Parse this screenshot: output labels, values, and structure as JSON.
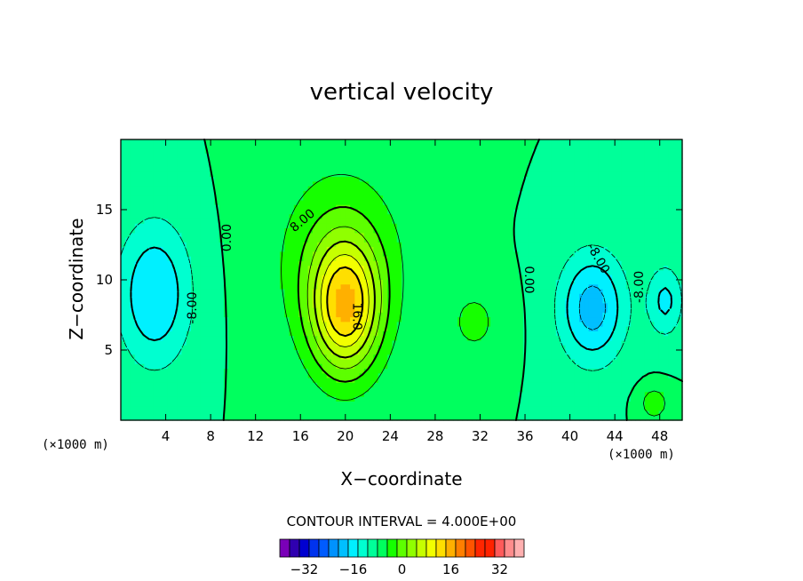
{
  "chart_data": {
    "type": "contour",
    "title": "vertical velocity",
    "xlabel": "X−coordinate",
    "ylabel": "Z−coordinate",
    "x_unit_label_left": "(×1000 m)",
    "x_unit_label_right": "(×1000 m)",
    "xlim": [
      0,
      50
    ],
    "ylim": [
      0,
      20
    ],
    "x_ticks": [
      4,
      8,
      12,
      16,
      20,
      24,
      28,
      32,
      36,
      40,
      44,
      48
    ],
    "y_ticks": [
      5,
      10,
      15
    ],
    "contour_interval_text": "CONTOUR INTERVAL = 4.000E+00",
    "contour_interval": 4,
    "contour_labels": [
      {
        "text": "0.00",
        "x": 9.5,
        "y": 13.0,
        "rotation": -90
      },
      {
        "text": "8.00",
        "x": 16.2,
        "y": 14.2,
        "rotation": -40
      },
      {
        "text": "16.0",
        "x": 21.0,
        "y": 7.4,
        "rotation": 90
      },
      {
        "text": "0.00",
        "x": 36.3,
        "y": 10.0,
        "rotation": 90
      },
      {
        "text": "-8.00",
        "x": 6.4,
        "y": 8.0,
        "rotation": -90
      },
      {
        "text": "-8.00",
        "x": 42.5,
        "y": 11.5,
        "rotation": 60
      },
      {
        "text": "-8.00",
        "x": 46.2,
        "y": 9.5,
        "rotation": -90
      }
    ],
    "field_features": [
      {
        "name": "updraft-core",
        "x": 20.0,
        "y": 8.0,
        "peak": 24
      },
      {
        "name": "downdraft-left",
        "x": 3.0,
        "y": 9.0,
        "peak": -12
      },
      {
        "name": "downdraft-right",
        "x": 42.0,
        "y": 8.0,
        "peak": -14
      }
    ],
    "colorbar": {
      "min": -40,
      "max": 40,
      "step": 4,
      "tick_values": [
        -32,
        -16,
        0,
        16,
        32
      ],
      "tick_labels": [
        "−32",
        "−16",
        "0",
        "16",
        "32"
      ],
      "colors": [
        "#7a00b8",
        "#2f00b0",
        "#0000d0",
        "#0033ee",
        "#005cff",
        "#0092ff",
        "#00bfff",
        "#00f0ff",
        "#00ffd0",
        "#00ff99",
        "#00ff5e",
        "#16ff00",
        "#5dff00",
        "#90ff00",
        "#c6ff00",
        "#f2ff00",
        "#ffdf00",
        "#ffb000",
        "#ff7f00",
        "#ff5400",
        "#ff2600",
        "#ff2200",
        "#ff5a5a",
        "#ff8c8c",
        "#ffb0b0"
      ]
    }
  }
}
